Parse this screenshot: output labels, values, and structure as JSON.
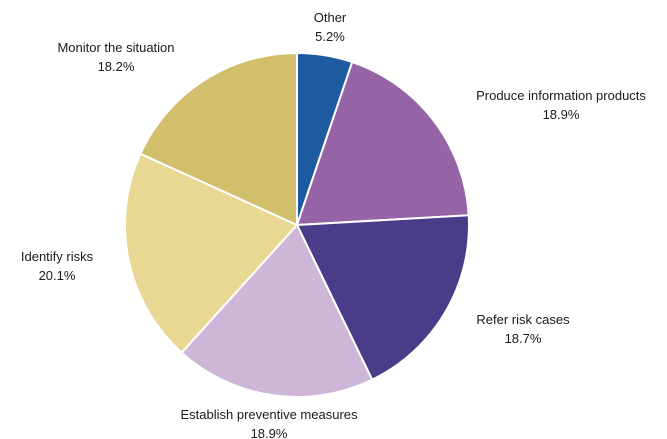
{
  "chart_data": {
    "type": "pie",
    "title": "",
    "start_angle_deg": 0,
    "direction": "clockwise",
    "slices": [
      {
        "label": "Other",
        "value": 5.2,
        "value_label": "5.2%",
        "color": "#1d5aa0"
      },
      {
        "label": "Produce information products",
        "value": 18.9,
        "value_label": "18.9%",
        "color": "#9563a6"
      },
      {
        "label": "Refer risk cases",
        "value": 18.7,
        "value_label": "18.7%",
        "color": "#4a3c88"
      },
      {
        "label": "Establish preventive measures",
        "value": 18.9,
        "value_label": "18.9%",
        "color": "#cdb6d8"
      },
      {
        "label": "Identify risks",
        "value": 20.1,
        "value_label": "20.1%",
        "color": "#e8d893"
      },
      {
        "label": "Monitor the situation",
        "value": 18.2,
        "value_label": "18.2%",
        "color": "#d2bf6b"
      }
    ]
  }
}
